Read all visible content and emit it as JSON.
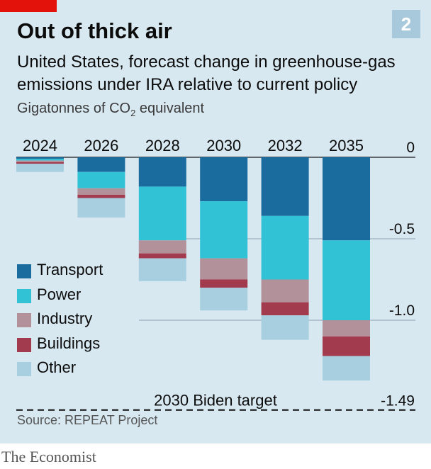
{
  "header": {
    "title": "Out of thick air",
    "badge": "2",
    "subtitle": "United States, forecast change in greenhouse-gas emissions under IRA relative to current policy",
    "unit_prefix": "Gigatonnes of CO",
    "unit_subscript": "2",
    "unit_suffix": " equivalent"
  },
  "footer": {
    "source": "Source: REPEAT Project",
    "brand": "The Economist"
  },
  "colors": {
    "Transport": "#1a6b9e",
    "Power": "#32c2d6",
    "Industry": "#b3919a",
    "Buildings": "#a23b4d",
    "Other": "#a7cfe0",
    "panel": "#d8e8f1",
    "red_tab": "#e3120b"
  },
  "chart_data": {
    "type": "bar",
    "stacked": true,
    "orientation": "vertical",
    "categories": [
      "2024",
      "2026",
      "2028",
      "2030",
      "2032",
      "2035"
    ],
    "ylim": [
      -1.49,
      0
    ],
    "yticks": [
      {
        "value": 0,
        "label": "0"
      },
      {
        "value": -0.5,
        "label": "-0.5"
      },
      {
        "value": -1.0,
        "label": "-1.0"
      }
    ],
    "legend_position": "left",
    "series": [
      {
        "name": "Transport",
        "values": [
          -0.01,
          -0.09,
          -0.18,
          -0.27,
          -0.36,
          -0.51
        ]
      },
      {
        "name": "Power",
        "values": [
          -0.01,
          -0.1,
          -0.33,
          -0.35,
          -0.39,
          -0.49
        ]
      },
      {
        "name": "Industry",
        "values": [
          -0.01,
          -0.04,
          -0.08,
          -0.13,
          -0.14,
          -0.1
        ]
      },
      {
        "name": "Buildings",
        "values": [
          -0.01,
          -0.02,
          -0.03,
          -0.05,
          -0.08,
          -0.12
        ]
      },
      {
        "name": "Other",
        "values": [
          -0.05,
          -0.12,
          -0.14,
          -0.14,
          -0.15,
          -0.15
        ]
      }
    ],
    "annotations": [
      {
        "label": "2030 Biden target",
        "value": -1.49,
        "value_label": "-1.49",
        "style": "dashed-line"
      }
    ]
  }
}
